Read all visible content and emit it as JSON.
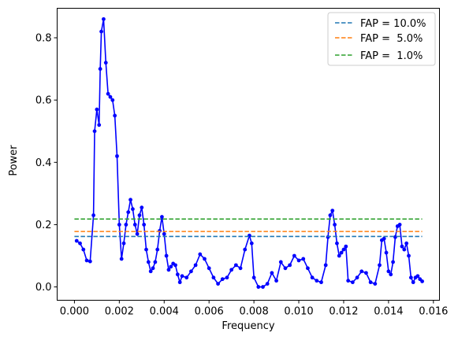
{
  "chart_data": {
    "type": "line",
    "title": "",
    "xlabel": "Frequency",
    "ylabel": "Power",
    "xlim": [
      -0.00077,
      0.01627
    ],
    "ylim": [
      -0.0428,
      0.8948
    ],
    "xticks": [
      0.0,
      0.002,
      0.004,
      0.006,
      0.008,
      0.01,
      0.012,
      0.014,
      0.016
    ],
    "xtick_labels": [
      "0.000",
      "0.002",
      "0.004",
      "0.006",
      "0.008",
      "0.010",
      "0.012",
      "0.014",
      "0.016"
    ],
    "yticks": [
      0.0,
      0.2,
      0.4,
      0.6,
      0.8
    ],
    "ytick_labels": [
      "0.0",
      "0.2",
      "0.4",
      "0.6",
      "0.8"
    ],
    "grid": false,
    "legend_position": "top-right",
    "series": [
      {
        "color": "#0000ff",
        "style": "solid-line-with-dots",
        "x": [
          0.0001,
          0.00025,
          0.0004,
          0.00055,
          0.0007,
          0.00085,
          0.0009,
          0.001,
          0.0011,
          0.00115,
          0.0012,
          0.0013,
          0.0014,
          0.0015,
          0.0016,
          0.0017,
          0.0018,
          0.0019,
          0.002,
          0.0021,
          0.0022,
          0.0023,
          0.0024,
          0.0025,
          0.0026,
          0.0027,
          0.0028,
          0.0029,
          0.003,
          0.0031,
          0.0032,
          0.0033,
          0.0034,
          0.0035,
          0.0036,
          0.0037,
          0.0038,
          0.0039,
          0.004,
          0.0041,
          0.0042,
          0.0043,
          0.0044,
          0.0045,
          0.0046,
          0.0047,
          0.0048,
          0.005,
          0.0052,
          0.0054,
          0.0056,
          0.0058,
          0.006,
          0.0062,
          0.0064,
          0.0066,
          0.0068,
          0.007,
          0.0072,
          0.0074,
          0.0076,
          0.0078,
          0.0079,
          0.008,
          0.0082,
          0.0084,
          0.0086,
          0.0088,
          0.009,
          0.0092,
          0.0094,
          0.0096,
          0.0098,
          0.01,
          0.0102,
          0.0104,
          0.0106,
          0.0108,
          0.011,
          0.0112,
          0.0113,
          0.0114,
          0.0115,
          0.0116,
          0.0117,
          0.0118,
          0.0119,
          0.012,
          0.0121,
          0.0122,
          0.0124,
          0.0126,
          0.0128,
          0.013,
          0.0132,
          0.0134,
          0.0136,
          0.0137,
          0.0138,
          0.0139,
          0.014,
          0.0141,
          0.0142,
          0.0143,
          0.0144,
          0.0145,
          0.0146,
          0.0147,
          0.0148,
          0.0149,
          0.015,
          0.0151,
          0.0152,
          0.0153,
          0.0154,
          0.0155
        ],
        "y": [
          0.148,
          0.14,
          0.12,
          0.085,
          0.082,
          0.23,
          0.5,
          0.57,
          0.52,
          0.7,
          0.82,
          0.86,
          0.72,
          0.62,
          0.61,
          0.6,
          0.55,
          0.42,
          0.2,
          0.09,
          0.14,
          0.2,
          0.24,
          0.28,
          0.25,
          0.2,
          0.17,
          0.23,
          0.255,
          0.2,
          0.12,
          0.08,
          0.05,
          0.06,
          0.08,
          0.12,
          0.18,
          0.225,
          0.17,
          0.1,
          0.055,
          0.065,
          0.075,
          0.07,
          0.04,
          0.015,
          0.035,
          0.03,
          0.05,
          0.07,
          0.105,
          0.09,
          0.06,
          0.03,
          0.01,
          0.025,
          0.03,
          0.055,
          0.07,
          0.06,
          0.12,
          0.165,
          0.14,
          0.03,
          0.0,
          0.0,
          0.01,
          0.045,
          0.02,
          0.08,
          0.06,
          0.07,
          0.1,
          0.085,
          0.09,
          0.06,
          0.03,
          0.02,
          0.015,
          0.07,
          0.16,
          0.23,
          0.245,
          0.2,
          0.14,
          0.1,
          0.11,
          0.12,
          0.13,
          0.02,
          0.015,
          0.03,
          0.05,
          0.045,
          0.015,
          0.01,
          0.07,
          0.15,
          0.155,
          0.11,
          0.05,
          0.04,
          0.08,
          0.16,
          0.195,
          0.2,
          0.13,
          0.12,
          0.14,
          0.1,
          0.03,
          0.015,
          0.03,
          0.035,
          0.025,
          0.018
        ]
      }
    ],
    "reference_lines": [
      {
        "name": "FAP = 10.0%",
        "y": 0.162,
        "color": "#1f77b4",
        "x_range": [
          0.0,
          0.0155
        ]
      },
      {
        "name": "FAP =  5.0%",
        "y": 0.178,
        "color": "#ff7f0e",
        "x_range": [
          0.0,
          0.0155
        ]
      },
      {
        "name": "FAP =  1.0%",
        "y": 0.218,
        "color": "#2ca02c",
        "x_range": [
          0.0,
          0.0155
        ]
      }
    ]
  }
}
